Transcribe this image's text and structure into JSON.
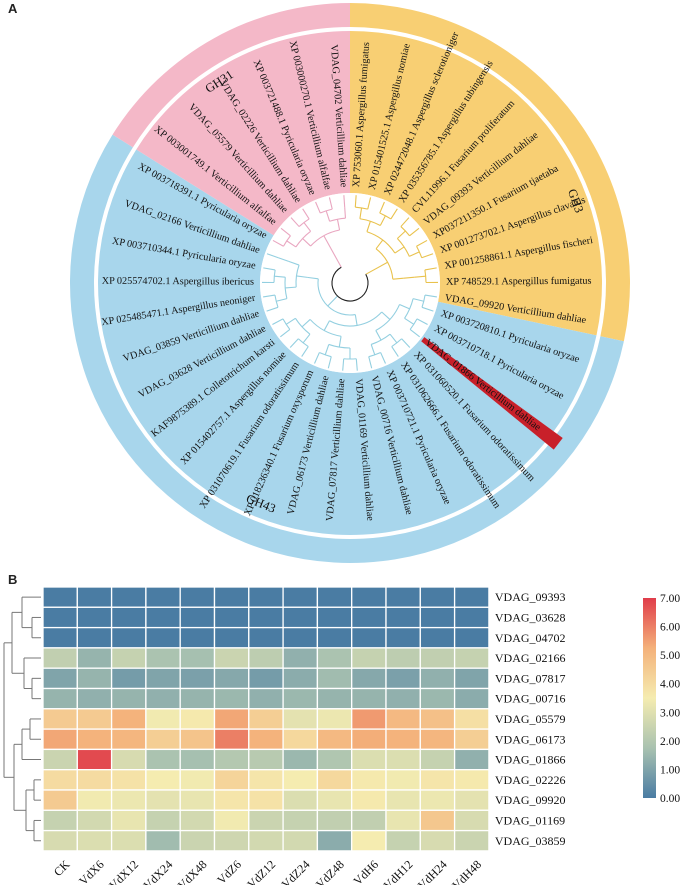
{
  "panel_a": {
    "label": "A",
    "families": [
      {
        "name": "GH31",
        "color": "#f4b8c8"
      },
      {
        "name": "GH3",
        "color": "#f8cf73"
      },
      {
        "name": "GH43",
        "color": "#a8d6ec"
      }
    ],
    "highlight_color": "#c8202a",
    "tree_colors": {
      "GH31": "#e9a6c0",
      "GH3": "#e9c24d",
      "GH43": "#93cfe0"
    },
    "tips": [
      {
        "label": "XP 753060.1 Aspergillus fumigatus",
        "family": "GH3"
      },
      {
        "label": "XP 015401525.1 Aspergillus nomiae",
        "family": "GH3"
      },
      {
        "label": "XP 024472048.1 Aspergillus sclerotioniger",
        "family": "GH3"
      },
      {
        "label": "XP 035356785.1 Aspergillus tubingensis",
        "family": "GH3"
      },
      {
        "label": "CVL11996.1 Fusarium proliferatum",
        "family": "GH3"
      },
      {
        "label": "VDAG_09393 Verticillium dahliae",
        "family": "GH3"
      },
      {
        "label": "XP037211350.1 Fusarium tjaetaba",
        "family": "GH3"
      },
      {
        "label": "XP 001273702.1 Aspergillus clavatus",
        "family": "GH3"
      },
      {
        "label": "XP 001258861.1 Aspergillus fischeri",
        "family": "GH3"
      },
      {
        "label": "XP 748529.1 Aspergillus fumigatus",
        "family": "GH3"
      },
      {
        "label": "VDAG_09920 Verticillium dahliae",
        "family": "GH43"
      },
      {
        "label": "XP 003720810.1 Pyricularia oryzae",
        "family": "GH43"
      },
      {
        "label": "XP 003710718.1 Pyricularia oryzae",
        "family": "GH43"
      },
      {
        "label": "VDAG_01866 Verticillium dahliae",
        "family": "GH43",
        "highlight": true
      },
      {
        "label": "XP 031060520.1 Fusarium odoratissimum",
        "family": "GH43"
      },
      {
        "label": "XP 031062666.1 Fusarium odoratissimum",
        "family": "GH43"
      },
      {
        "label": "XP 003710721.1 Pyricularia oryzae",
        "family": "GH43"
      },
      {
        "label": "VDAG_00716 Verticillium dahliae",
        "family": "GH43"
      },
      {
        "label": "VDAG_01169 Verticillium dahliae",
        "family": "GH43"
      },
      {
        "label": "VDAG_07817 Verticillium dahliae",
        "family": "GH43"
      },
      {
        "label": "VDAG_06173 Verticillium dahliae",
        "family": "GH43"
      },
      {
        "label": "XP 018236340.1 Fusarium oxysporum",
        "family": "GH43"
      },
      {
        "label": "XP 031070619.1 Fusarium odoratissimum",
        "family": "GH43"
      },
      {
        "label": "XP 015402757.1 Aspergillus nomiae",
        "family": "GH43"
      },
      {
        "label": "KAF9875389.1 Colletotrichum karsti",
        "family": "GH43"
      },
      {
        "label": "VDAG_03628 Verticillium dahliae",
        "family": "GH43"
      },
      {
        "label": "VDAG_03859 Verticillium dahliae",
        "family": "GH43"
      },
      {
        "label": "XP 025485471.1 Aspergillus neoniger",
        "family": "GH43"
      },
      {
        "label": "XP 025574702.1 Aspergillus ibericus",
        "family": "GH43"
      },
      {
        "label": "XP 003710344.1 Pyricularia oryzae",
        "family": "GH43"
      },
      {
        "label": "VDAG_02166 Verticillium dahliae",
        "family": "GH43"
      },
      {
        "label": "XP 003718391.1 Pyricularia oryzae",
        "family": "GH31"
      },
      {
        "label": "XP 003001749.1 Verticillium alfalfae",
        "family": "GH31"
      },
      {
        "label": "VDAG_05579 Verticillium dahliae",
        "family": "GH31"
      },
      {
        "label": "VDAG_02226 Verticillium dahliae",
        "family": "GH31"
      },
      {
        "label": "XP 003721488.1 Pyricularia oryzae",
        "family": "GH31"
      },
      {
        "label": "XP 003000270.1 Verticillium alfalfae",
        "family": "GH31"
      },
      {
        "label": "VDAG_04702 Verticillium dahliae",
        "family": "GH31"
      }
    ]
  },
  "chart_data": {
    "type": "heatmap",
    "panel_label": "B",
    "columns": [
      "CK",
      "VdX6",
      "VdX12",
      "VdX24",
      "VdX48",
      "VdZ6",
      "VdZ12",
      "VdZ24",
      "VdZ48",
      "VdH6",
      "VdH12",
      "VdH24",
      "VdH48"
    ],
    "rows": [
      {
        "name": "VDAG_09393",
        "values": [
          0.0,
          0.0,
          0.0,
          0.0,
          0.0,
          0.0,
          0.0,
          0.0,
          0.0,
          0.0,
          0.0,
          0.0,
          0.0
        ]
      },
      {
        "name": "VDAG_03628",
        "values": [
          0.0,
          0.0,
          0.0,
          0.0,
          0.0,
          0.0,
          0.0,
          0.0,
          0.0,
          0.0,
          0.0,
          0.0,
          0.0
        ]
      },
      {
        "name": "VDAG_04702",
        "values": [
          0.0,
          0.0,
          0.0,
          0.0,
          0.0,
          0.0,
          0.0,
          0.0,
          0.0,
          0.0,
          0.0,
          0.0,
          0.0
        ]
      },
      {
        "name": "VDAG_02166",
        "values": [
          2.3,
          1.4,
          2.4,
          1.8,
          1.7,
          2.5,
          2.2,
          1.3,
          1.8,
          2.4,
          2.2,
          2.3,
          2.4
        ]
      },
      {
        "name": "VDAG_07817",
        "values": [
          1.0,
          1.4,
          0.8,
          1.0,
          0.9,
          1.1,
          0.8,
          1.2,
          1.6,
          1.1,
          0.9,
          1.3,
          1.0
        ]
      },
      {
        "name": "VDAG_00716",
        "values": [
          1.4,
          1.3,
          1.4,
          1.3,
          1.4,
          1.5,
          1.3,
          1.5,
          1.4,
          1.4,
          1.3,
          1.5,
          1.2
        ]
      },
      {
        "name": "VDAG_05579",
        "values": [
          4.5,
          4.5,
          5.2,
          3.4,
          3.6,
          5.4,
          4.4,
          3.1,
          3.3,
          5.6,
          5.0,
          4.8,
          3.9
        ]
      },
      {
        "name": "VDAG_06173",
        "values": [
          5.4,
          5.2,
          5.1,
          4.4,
          4.7,
          6.0,
          5.2,
          4.1,
          5.0,
          5.3,
          5.2,
          5.1,
          4.4
        ]
      },
      {
        "name": "VDAG_01866",
        "values": [
          2.5,
          6.8,
          2.8,
          1.8,
          1.7,
          2.0,
          2.1,
          1.5,
          1.9,
          2.9,
          2.9,
          2.4,
          1.3
        ]
      },
      {
        "name": "VDAG_02226",
        "values": [
          4.0,
          4.0,
          3.8,
          3.5,
          3.4,
          4.2,
          3.7,
          3.5,
          4.1,
          3.6,
          3.4,
          3.7,
          3.6
        ]
      },
      {
        "name": "VDAG_09920",
        "values": [
          4.5,
          3.4,
          3.3,
          3.1,
          3.2,
          3.7,
          3.8,
          2.9,
          3.2,
          3.6,
          3.2,
          3.3,
          3.1
        ]
      },
      {
        "name": "VDAG_01169",
        "values": [
          2.4,
          2.7,
          3.2,
          2.4,
          2.7,
          3.4,
          2.5,
          2.4,
          2.3,
          2.3,
          3.2,
          4.6,
          2.8
        ]
      },
      {
        "name": "VDAG_03859",
        "values": [
          2.8,
          2.9,
          2.9,
          1.6,
          2.5,
          2.6,
          2.7,
          2.7,
          1.2,
          3.5,
          2.4,
          2.8,
          2.5
        ]
      }
    ],
    "highlight_row": "VDAG_01866",
    "highlight_color": "#e0242e",
    "colorbar": {
      "min": 0.0,
      "max": 7.0,
      "ticks": [
        "7.00",
        "6.00",
        "5.00",
        "4.00",
        "3.00",
        "2.00",
        "1.00",
        "0.00"
      ],
      "stops": [
        "#4a7ca3",
        "#a9c2b0",
        "#f5ecb0",
        "#f4b17a",
        "#e03d4a"
      ]
    }
  }
}
